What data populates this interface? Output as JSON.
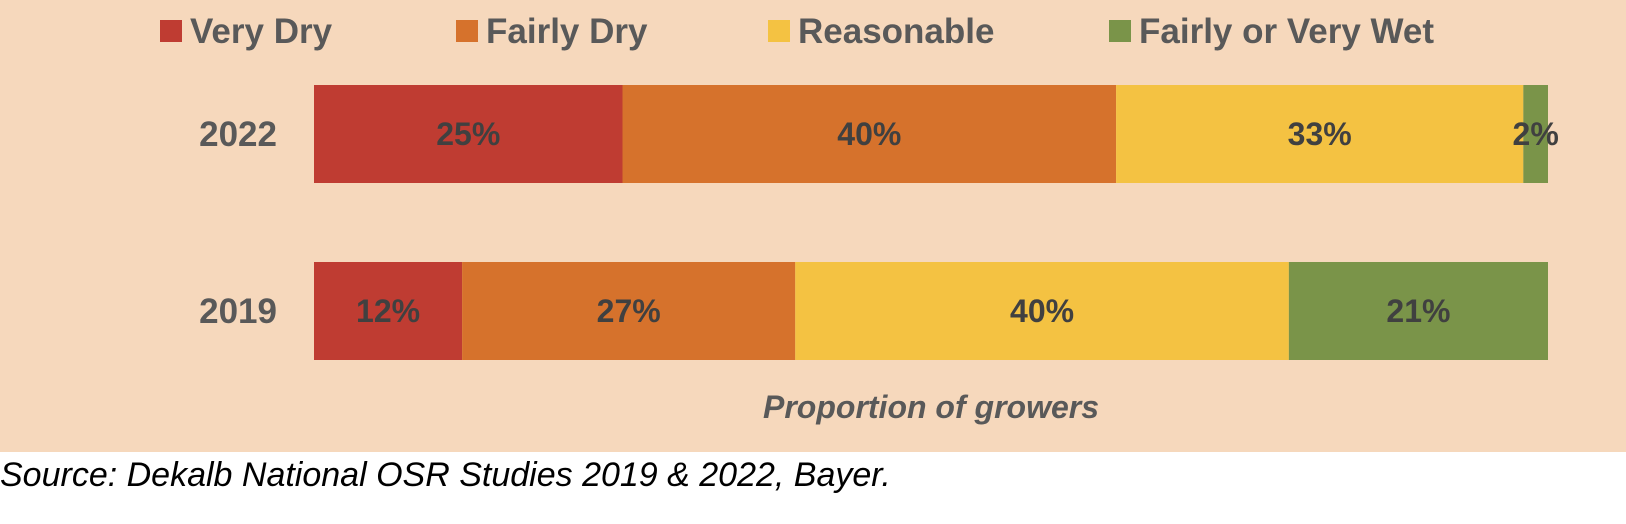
{
  "chart_data": {
    "type": "bar",
    "orientation": "horizontal",
    "stacked": true,
    "normalized_percent": true,
    "categories": [
      "2022",
      "2019"
    ],
    "series": [
      {
        "name": "Very Dry",
        "color": "#bf3c32",
        "values": [
          25,
          12
        ],
        "labels": [
          "25%",
          "12%"
        ]
      },
      {
        "name": "Fairly Dry",
        "color": "#d6722c",
        "values": [
          40,
          27
        ],
        "labels": [
          "40%",
          "27%"
        ]
      },
      {
        "name": "Reasonable",
        "color": "#f4c242",
        "values": [
          33,
          40
        ],
        "labels": [
          "33%",
          "40%"
        ]
      },
      {
        "name": "Fairly or Very Wet",
        "color": "#7a9449",
        "values": [
          2,
          21
        ],
        "labels": [
          "2%",
          "21%"
        ]
      }
    ],
    "xlabel": "Proportion of growers",
    "ylabel": "",
    "xlim": [
      0,
      100
    ],
    "grid": false,
    "legend_position": "top"
  },
  "source_note": "Source: Dekalb National OSR Studies 2019 & 2022, Bayer.",
  "colors": {
    "background": "#f6d8bc",
    "text": "#595959",
    "value_text": "#404040"
  }
}
